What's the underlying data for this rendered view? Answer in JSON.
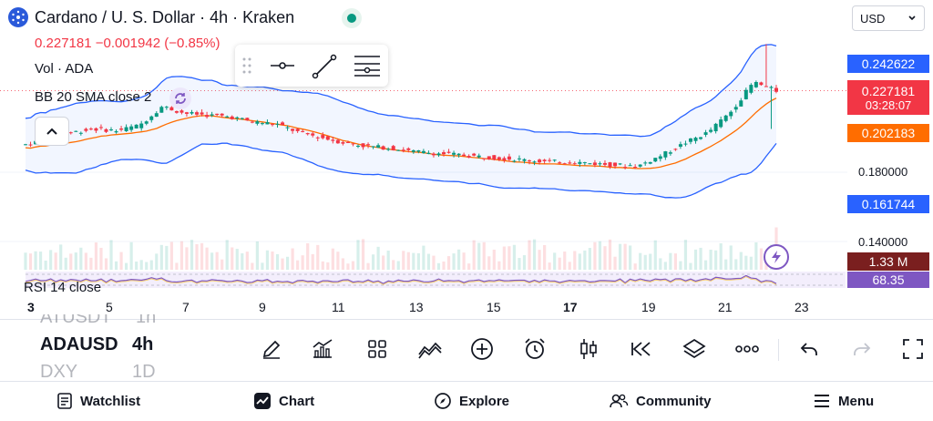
{
  "header": {
    "title": "Cardano / U. S. Dollar · 4h · Kraken",
    "price_line": "0.227181 −0.001942 (−0.85%)",
    "volume_label": "Vol · ADA",
    "bb_label": "BB 20 SMA close 2",
    "currency": "USD"
  },
  "price_axis": {
    "bb_upper": "0.242622",
    "last_price": "0.227181",
    "countdown": "03:28:07",
    "bb_middle": "0.202183",
    "tick_180": "0.180000",
    "bb_lower": "0.161744",
    "tick_140": "0.140000",
    "volume_tag": "1.33 M",
    "rsi_value": "68.35"
  },
  "rsi": {
    "label": "RSI 14 close"
  },
  "time_axis": [
    "3",
    "5",
    "7",
    "9",
    "11",
    "13",
    "15",
    "17",
    "19",
    "21",
    "23"
  ],
  "symbols": {
    "prev": "ATUSDT",
    "prev_interval": "1h",
    "current": "ADAUSD",
    "current_interval": "4h",
    "next": "DXY",
    "next_interval": "1D"
  },
  "toolbar": [
    "draw",
    "indicators",
    "layouts",
    "compare",
    "add",
    "alert",
    "candles",
    "replay",
    "layers",
    "more",
    "undo",
    "redo",
    "fullscreen"
  ],
  "nav": {
    "watchlist": "Watchlist",
    "chart": "Chart",
    "explore": "Explore",
    "community": "Community",
    "menu": "Menu"
  },
  "colors": {
    "up": "#089981",
    "down": "#f23645",
    "bb_band": "#2962ff",
    "bb_basis": "#ff6d00",
    "rsi": "#7e57c2",
    "accent_tag": "#2962ff"
  },
  "chart_data": {
    "type": "candlestick",
    "symbol": "ADAUSD",
    "interval": "4h",
    "x_labels": [
      "3",
      "5",
      "7",
      "9",
      "11",
      "13",
      "15",
      "17",
      "19",
      "21",
      "23"
    ],
    "price_ticks": [
      0.18,
      0.14
    ],
    "close_path": [
      0.196,
      0.199,
      0.203,
      0.205,
      0.204,
      0.207,
      0.218,
      0.214,
      0.213,
      0.212,
      0.209,
      0.208,
      0.203,
      0.2,
      0.197,
      0.195,
      0.194,
      0.192,
      0.191,
      0.19,
      0.189,
      0.188,
      0.187,
      0.186,
      0.186,
      0.185,
      0.184,
      0.184,
      0.19,
      0.197,
      0.203,
      0.215,
      0.232,
      0.227
    ],
    "bb_upper": 0.242622,
    "bb_basis": 0.202183,
    "bb_lower": 0.161744,
    "last_price": 0.227181,
    "rsi": 68.35,
    "volume_last": "1.33 M"
  }
}
